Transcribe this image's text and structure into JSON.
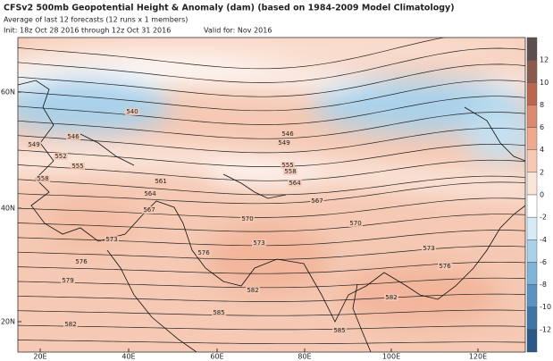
{
  "header": {
    "title": "CFSv2 500mb Geopotential Height & Anomaly (dam) (based on 1984-2009 Model Climatology)",
    "subtitle": "Average of last 12 forecasts (12 runs x 1 members)",
    "init": "Init: 18z Oct 28 2016 through 12z Oct 31 2016",
    "valid": "Valid for: Nov 2016"
  },
  "map": {
    "lat_labels": [
      "60N",
      "40N",
      "20N"
    ],
    "lon_labels": [
      "20E",
      "40E",
      "60E",
      "80E",
      "100E",
      "120E"
    ],
    "contour_labels": [
      "540",
      "546",
      "549",
      "552",
      "555",
      "558",
      "561",
      "564",
      "567",
      "570",
      "573",
      "576",
      "579",
      "582",
      "585"
    ]
  },
  "colorbar": {
    "ticks": [
      "12",
      "10",
      "8",
      "6",
      "4",
      "2",
      "0",
      "-2",
      "-4",
      "-6",
      "-8",
      "-10",
      "-12"
    ]
  }
}
